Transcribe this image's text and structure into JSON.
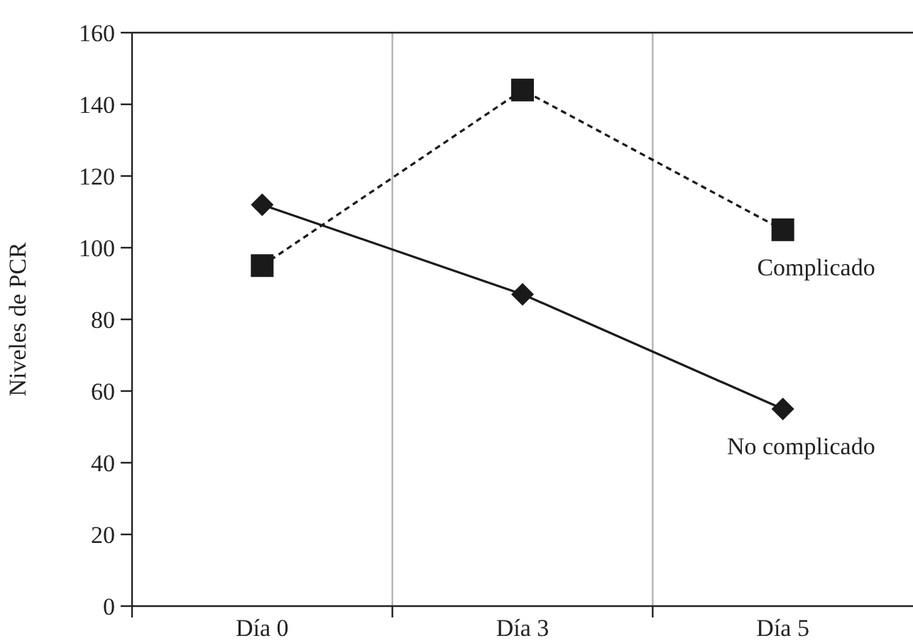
{
  "chart_data": {
    "type": "line",
    "ylabel": "Niveles de PCR",
    "categories": [
      "Día 0",
      "Día 3",
      "Día 5"
    ],
    "series": [
      {
        "name": "Complicado",
        "color": "#1a1a1a",
        "values": [
          95,
          144,
          105
        ],
        "marker": "square",
        "line_style": "dashed"
      },
      {
        "name": "No complicado",
        "color": "#1a1a1a",
        "values": [
          112,
          87,
          55
        ],
        "marker": "diamond",
        "line_style": "solid"
      }
    ],
    "ylim": [
      0,
      160
    ],
    "yticks": [
      0,
      20,
      40,
      60,
      80,
      100,
      120,
      140,
      160
    ],
    "grid": "x"
  }
}
